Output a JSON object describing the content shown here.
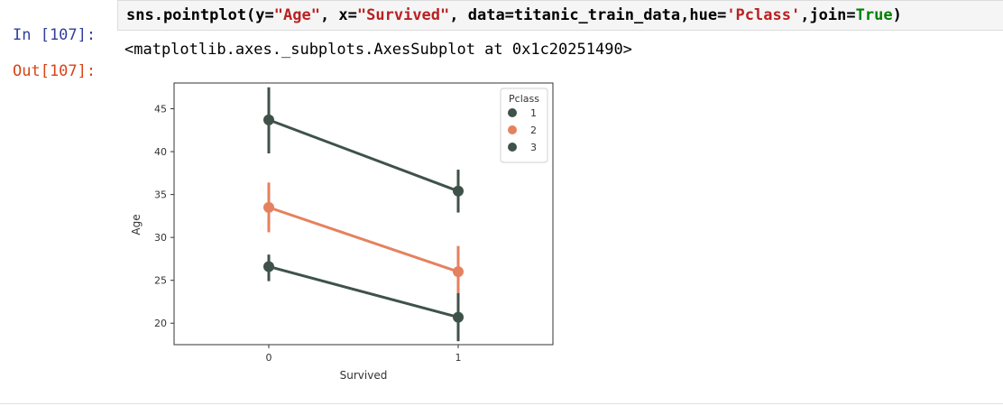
{
  "notebook": {
    "input_prompt": "In [107]:",
    "code_parts": [
      {
        "t": "sns.pointplot(y=",
        "c": "plain"
      },
      {
        "t": "\"Age\"",
        "c": "str"
      },
      {
        "t": ", x=",
        "c": "plain"
      },
      {
        "t": "\"Survived\"",
        "c": "str"
      },
      {
        "t": ", data=titanic_train_data,hue=",
        "c": "plain"
      },
      {
        "t": "'Pclass'",
        "c": "str"
      },
      {
        "t": ",join=",
        "c": "plain"
      },
      {
        "t": "True",
        "c": "kw"
      },
      {
        "t": ")",
        "c": "plain"
      }
    ],
    "output_prompt": "Out[107]:",
    "output_text": "<matplotlib.axes._subplots.AxesSubplot at 0x1c20251490>"
  },
  "chart_data": {
    "type": "line",
    "xlabel": "Survived",
    "ylabel": "Age",
    "categories": [
      "0",
      "1"
    ],
    "ylim": [
      17.5,
      48
    ],
    "yticks": [
      20,
      25,
      30,
      35,
      40,
      45
    ],
    "grid": false,
    "legend": {
      "title": "Pclass",
      "placement": "top-right"
    },
    "series": [
      {
        "name": "1",
        "color": "#3f524a",
        "values": [
          43.7,
          35.4
        ],
        "ci_low": [
          39.8,
          32.9
        ],
        "ci_high": [
          47.5,
          37.9
        ]
      },
      {
        "name": "2",
        "color": "#e5815f",
        "values": [
          33.5,
          26.0
        ],
        "ci_low": [
          30.6,
          23.0
        ],
        "ci_high": [
          36.4,
          29.0
        ]
      },
      {
        "name": "3",
        "color": "#3f524a",
        "values": [
          26.6,
          20.7
        ],
        "ci_low": [
          24.9,
          17.9
        ],
        "ci_high": [
          28.0,
          23.5
        ]
      }
    ]
  }
}
